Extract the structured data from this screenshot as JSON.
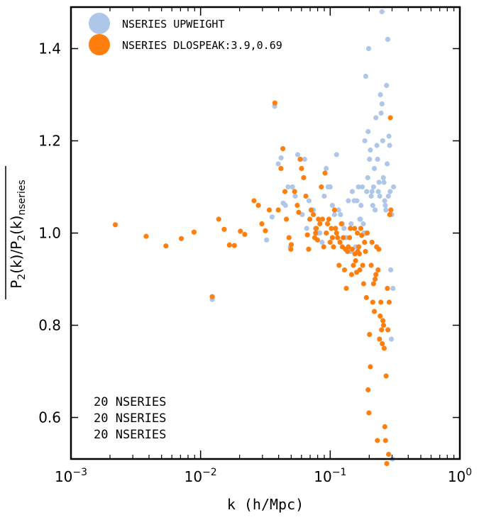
{
  "chart_data": {
    "type": "scatter",
    "title": "",
    "xlabel": "k (h/Mpc)",
    "ylabel": {
      "main": "P",
      "sub1": "2",
      "mid": "(k)/P",
      "sub2": "2",
      "end": "(k)",
      "sub3": "nseries"
    },
    "xscale": "log",
    "xlim": [
      0.001,
      1
    ],
    "ylim": [
      0.51,
      1.49
    ],
    "x_ticks": [
      {
        "value": 0.001,
        "base": "10",
        "exp": "−3"
      },
      {
        "value": 0.01,
        "base": "10",
        "exp": "−2"
      },
      {
        "value": 0.1,
        "base": "10",
        "exp": "−1"
      },
      {
        "value": 1,
        "base": "10",
        "exp": "0"
      }
    ],
    "y_ticks": [
      {
        "value": 0.6,
        "label": "0.6"
      },
      {
        "value": 0.8,
        "label": "0.8"
      },
      {
        "value": 1.0,
        "label": "1.0"
      },
      {
        "value": 1.2,
        "label": "1.2"
      },
      {
        "value": 1.4,
        "label": "1.4"
      }
    ],
    "grid": false,
    "legend_position": "top-left",
    "annotations": [
      "20 NSERIES",
      "20 NSERIES",
      "20 NSERIES"
    ],
    "series": [
      {
        "name": "NSERIES UPWEIGHT",
        "color": "#aec7e8",
        "points": [
          [
            0.0123,
            0.856
          ],
          [
            0.0323,
            0.985
          ],
          [
            0.0356,
            1.035
          ],
          [
            0.0373,
            1.275
          ],
          [
            0.0398,
            1.15
          ],
          [
            0.0418,
            1.163
          ],
          [
            0.0434,
            1.065
          ],
          [
            0.0452,
            1.06
          ],
          [
            0.0473,
            1.1
          ],
          [
            0.0492,
            0.97
          ],
          [
            0.0512,
            1.1
          ],
          [
            0.0537,
            1.08
          ],
          [
            0.0561,
            1.17
          ],
          [
            0.0586,
            1.16
          ],
          [
            0.0608,
            1.04
          ],
          [
            0.0635,
            1.16
          ],
          [
            0.0659,
            1.01
          ],
          [
            0.0686,
            1.07
          ],
          [
            0.0712,
            1.05
          ],
          [
            0.0741,
            1.05
          ],
          [
            0.0769,
            1.01
          ],
          [
            0.0801,
            1.0
          ],
          [
            0.0832,
            1.0
          ],
          [
            0.0865,
            0.98
          ],
          [
            0.0899,
            1.08
          ],
          [
            0.0932,
            1.14
          ],
          [
            0.0962,
            1.1
          ],
          [
            0.1,
            1.1
          ],
          [
            0.104,
            1.06
          ],
          [
            0.108,
            1.04
          ],
          [
            0.112,
            1.17
          ],
          [
            0.116,
            1.05
          ],
          [
            0.12,
            1.04
          ],
          [
            0.124,
            1.02
          ],
          [
            0.128,
            1.01
          ],
          [
            0.133,
            0.99
          ],
          [
            0.138,
            1.07
          ],
          [
            0.143,
            0.96
          ],
          [
            0.148,
            1.09
          ],
          [
            0.153,
            1.07
          ],
          [
            0.157,
            0.97
          ],
          [
            0.161,
            1.07
          ],
          [
            0.165,
            1.1
          ],
          [
            0.169,
            1.03
          ],
          [
            0.173,
            1.06
          ],
          [
            0.177,
            1.1
          ],
          [
            0.18,
            1.02
          ],
          [
            0.182,
            1.0
          ],
          [
            0.185,
            1.2
          ],
          [
            0.188,
            1.0
          ],
          [
            0.191,
            1.09
          ],
          [
            0.195,
            1.12
          ],
          [
            0.198,
            1.4
          ],
          [
            0.201,
            1.16
          ],
          [
            0.204,
            1.18
          ],
          [
            0.207,
            1.08
          ],
          [
            0.21,
            1.09
          ],
          [
            0.213,
            1.06
          ],
          [
            0.216,
            1.1
          ],
          [
            0.219,
            1.14
          ],
          [
            0.222,
            1.05
          ],
          [
            0.225,
            1.25
          ],
          [
            0.229,
            1.19
          ],
          [
            0.232,
            1.16
          ],
          [
            0.235,
            1.09
          ],
          [
            0.238,
            1.11
          ],
          [
            0.241,
            1.08
          ],
          [
            0.244,
            1.3
          ],
          [
            0.247,
            1.26
          ],
          [
            0.251,
            1.28
          ],
          [
            0.254,
            1.2
          ],
          [
            0.257,
            1.12
          ],
          [
            0.26,
            1.11
          ],
          [
            0.263,
            1.07
          ],
          [
            0.266,
            1.06
          ],
          [
            0.269,
            1.05
          ],
          [
            0.272,
            1.32
          ],
          [
            0.275,
            1.15
          ],
          [
            0.278,
            1.42
          ],
          [
            0.281,
            1.08
          ],
          [
            0.284,
            1.21
          ],
          [
            0.287,
            1.19
          ],
          [
            0.29,
            1.09
          ],
          [
            0.293,
            0.92
          ],
          [
            0.296,
            0.77
          ],
          [
            0.299,
            1.04
          ],
          [
            0.302,
            0.51
          ],
          [
            0.305,
            0.88
          ],
          [
            0.308,
            1.1
          ],
          [
            0.251,
            1.48
          ],
          [
            0.188,
            1.34
          ],
          [
            0.196,
            1.22
          ],
          [
            0.145,
            1.02
          ],
          [
            0.171,
            1.03
          ],
          [
            0.132,
            0.99
          ]
        ]
      },
      {
        "name": "NSERIES DLOSPEAK:3.9,0.69",
        "color": "#ff7f0e",
        "points": [
          [
            0.0022,
            1.018
          ],
          [
            0.0038,
            0.993
          ],
          [
            0.0054,
            0.972
          ],
          [
            0.0071,
            0.988
          ],
          [
            0.0089,
            1.002
          ],
          [
            0.0123,
            0.862
          ],
          [
            0.0138,
            1.03
          ],
          [
            0.0152,
            1.008
          ],
          [
            0.0167,
            0.974
          ],
          [
            0.0182,
            0.973
          ],
          [
            0.0203,
            1.004
          ],
          [
            0.0219,
            0.997
          ],
          [
            0.0258,
            1.07
          ],
          [
            0.0279,
            1.06
          ],
          [
            0.0297,
            1.02
          ],
          [
            0.0316,
            1.005
          ],
          [
            0.0339,
            1.05
          ],
          [
            0.0374,
            1.282
          ],
          [
            0.0398,
            1.05
          ],
          [
            0.0417,
            1.14
          ],
          [
            0.0431,
            1.183
          ],
          [
            0.0447,
            1.09
          ],
          [
            0.0459,
            1.03
          ],
          [
            0.0481,
            0.99
          ],
          [
            0.0497,
            0.965
          ],
          [
            0.0501,
            0.975
          ],
          [
            0.0531,
            1.09
          ],
          [
            0.0557,
            1.06
          ],
          [
            0.0571,
            1.045
          ],
          [
            0.0587,
            1.16
          ],
          [
            0.0601,
            1.14
          ],
          [
            0.0624,
            1.12
          ],
          [
            0.0649,
            1.08
          ],
          [
            0.0667,
            0.996
          ],
          [
            0.0681,
            0.965
          ],
          [
            0.0695,
            1.03
          ],
          [
            0.0713,
            1.05
          ],
          [
            0.0741,
            1.04
          ],
          [
            0.0759,
            0.99
          ],
          [
            0.0771,
            1.0
          ],
          [
            0.0781,
            1.01
          ],
          [
            0.0798,
            0.985
          ],
          [
            0.0812,
            1.03
          ],
          [
            0.0833,
            1.02
          ],
          [
            0.0854,
            1.1
          ],
          [
            0.0871,
            1.03
          ],
          [
            0.0891,
            0.97
          ],
          [
            0.0912,
            1.13
          ],
          [
            0.0933,
            1.0
          ],
          [
            0.0954,
            1.02
          ],
          [
            0.0976,
            1.03
          ],
          [
            0.0998,
            0.98
          ],
          [
            0.102,
            1.01
          ],
          [
            0.104,
            0.99
          ],
          [
            0.106,
            0.97
          ],
          [
            0.108,
            1.05
          ],
          [
            0.11,
            1.01
          ],
          [
            0.112,
            1.0
          ],
          [
            0.114,
            0.99
          ],
          [
            0.117,
            0.93
          ],
          [
            0.119,
            0.98
          ],
          [
            0.122,
            1.02
          ],
          [
            0.124,
            0.97
          ],
          [
            0.126,
            0.99
          ],
          [
            0.129,
            0.92
          ],
          [
            0.131,
            0.965
          ],
          [
            0.133,
            0.88
          ],
          [
            0.136,
            0.96
          ],
          [
            0.138,
            0.97
          ],
          [
            0.141,
            0.99
          ],
          [
            0.143,
            1.01
          ],
          [
            0.146,
            0.91
          ],
          [
            0.148,
            0.965
          ],
          [
            0.151,
            0.93
          ],
          [
            0.154,
            1.01
          ],
          [
            0.157,
            0.94
          ],
          [
            0.16,
            0.915
          ],
          [
            0.163,
            0.96
          ],
          [
            0.166,
            0.97
          ],
          [
            0.169,
            0.92
          ],
          [
            0.172,
            1.01
          ],
          [
            0.175,
            0.995
          ],
          [
            0.178,
            0.93
          ],
          [
            0.181,
            0.89
          ],
          [
            0.184,
            0.98
          ],
          [
            0.187,
            0.96
          ],
          [
            0.19,
            0.86
          ],
          [
            0.193,
            1.0
          ],
          [
            0.196,
            0.66
          ],
          [
            0.199,
            0.61
          ],
          [
            0.201,
            0.78
          ],
          [
            0.204,
            0.71
          ],
          [
            0.207,
            0.93
          ],
          [
            0.21,
            0.98
          ],
          [
            0.213,
            0.85
          ],
          [
            0.216,
            0.89
          ],
          [
            0.219,
            0.83
          ],
          [
            0.222,
            0.9
          ],
          [
            0.225,
            0.91
          ],
          [
            0.228,
            0.97
          ],
          [
            0.231,
            0.55
          ],
          [
            0.234,
            0.92
          ],
          [
            0.237,
            0.965
          ],
          [
            0.24,
            0.77
          ],
          [
            0.243,
            0.82
          ],
          [
            0.246,
            0.85
          ],
          [
            0.249,
            0.79
          ],
          [
            0.252,
            0.76
          ],
          [
            0.255,
            0.81
          ],
          [
            0.258,
            0.8
          ],
          [
            0.261,
            0.75
          ],
          [
            0.264,
            0.58
          ],
          [
            0.267,
            0.55
          ],
          [
            0.27,
            0.69
          ],
          [
            0.273,
            0.5
          ],
          [
            0.276,
            0.88
          ],
          [
            0.279,
            0.79
          ],
          [
            0.282,
            0.52
          ],
          [
            0.285,
            0.85
          ],
          [
            0.288,
            1.04
          ],
          [
            0.291,
            1.25
          ],
          [
            0.294,
            1.05
          ],
          [
            0.155,
            0.955
          ],
          [
            0.162,
            1.0
          ],
          [
            0.168,
            0.955
          ]
        ]
      }
    ]
  }
}
